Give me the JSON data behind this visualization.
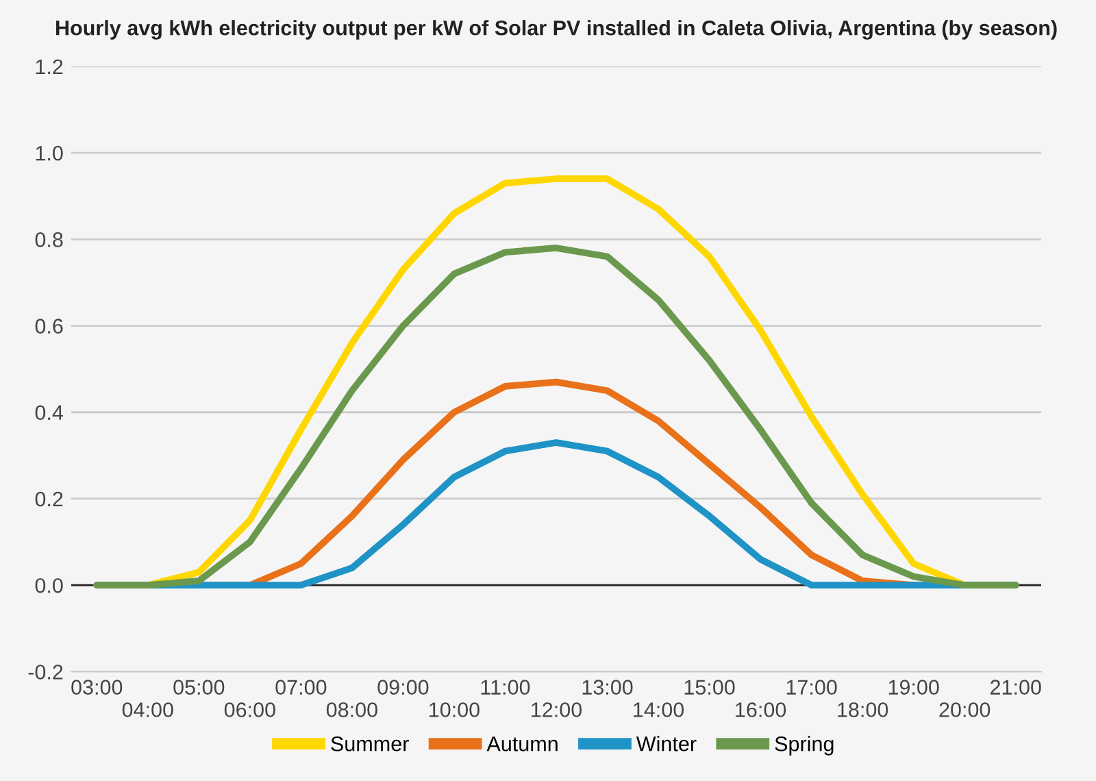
{
  "chart_data": {
    "type": "line",
    "title": "Hourly avg kWh electricity output per kW of Solar PV installed in Caleta Olivia, Argentina (by season)",
    "categories": [
      "03:00",
      "04:00",
      "05:00",
      "06:00",
      "07:00",
      "08:00",
      "09:00",
      "10:00",
      "11:00",
      "12:00",
      "13:00",
      "14:00",
      "15:00",
      "16:00",
      "17:00",
      "18:00",
      "19:00",
      "20:00",
      "21:00"
    ],
    "series": [
      {
        "name": "Summer",
        "color": "#ffd700",
        "values": [
          0,
          0,
          0.03,
          0.15,
          0.36,
          0.56,
          0.73,
          0.86,
          0.93,
          0.94,
          0.94,
          0.87,
          0.76,
          0.59,
          0.39,
          0.21,
          0.05,
          0,
          0
        ]
      },
      {
        "name": "Autumn",
        "color": "#e8711a",
        "values": [
          null,
          null,
          0,
          0,
          0.05,
          0.16,
          0.29,
          0.4,
          0.46,
          0.47,
          0.45,
          0.38,
          0.28,
          0.18,
          0.07,
          0.01,
          0,
          0,
          0
        ]
      },
      {
        "name": "Winter",
        "color": "#1f93c6",
        "values": [
          0,
          0,
          0,
          0,
          0,
          0.04,
          0.14,
          0.25,
          0.31,
          0.33,
          0.31,
          0.25,
          0.16,
          0.06,
          0,
          0,
          0,
          0,
          0
        ]
      },
      {
        "name": "Spring",
        "color": "#6a994e",
        "values": [
          0,
          0,
          0.01,
          0.1,
          0.27,
          0.45,
          0.6,
          0.72,
          0.77,
          0.78,
          0.76,
          0.66,
          0.52,
          0.36,
          0.19,
          0.07,
          0.02,
          0,
          0
        ]
      }
    ],
    "ylim": [
      -0.2,
      1.2
    ],
    "yticks": [
      {
        "value": -0.2,
        "label": "-0.2"
      },
      {
        "value": 0,
        "label": "0.0"
      },
      {
        "value": 0.2,
        "label": "0.2"
      },
      {
        "value": 0.4,
        "label": "0.4"
      },
      {
        "value": 0.6,
        "label": "0.6"
      },
      {
        "value": 0.8,
        "label": "0.8"
      },
      {
        "value": 1.0,
        "label": "1.0"
      },
      {
        "value": 1.2,
        "label": "1.2"
      }
    ],
    "ref_lines": [
      {
        "axis": "y",
        "value": 0,
        "color": "#222222"
      }
    ],
    "grid": "y",
    "legend": "bottom",
    "marker": "none",
    "line_style": "solid"
  }
}
